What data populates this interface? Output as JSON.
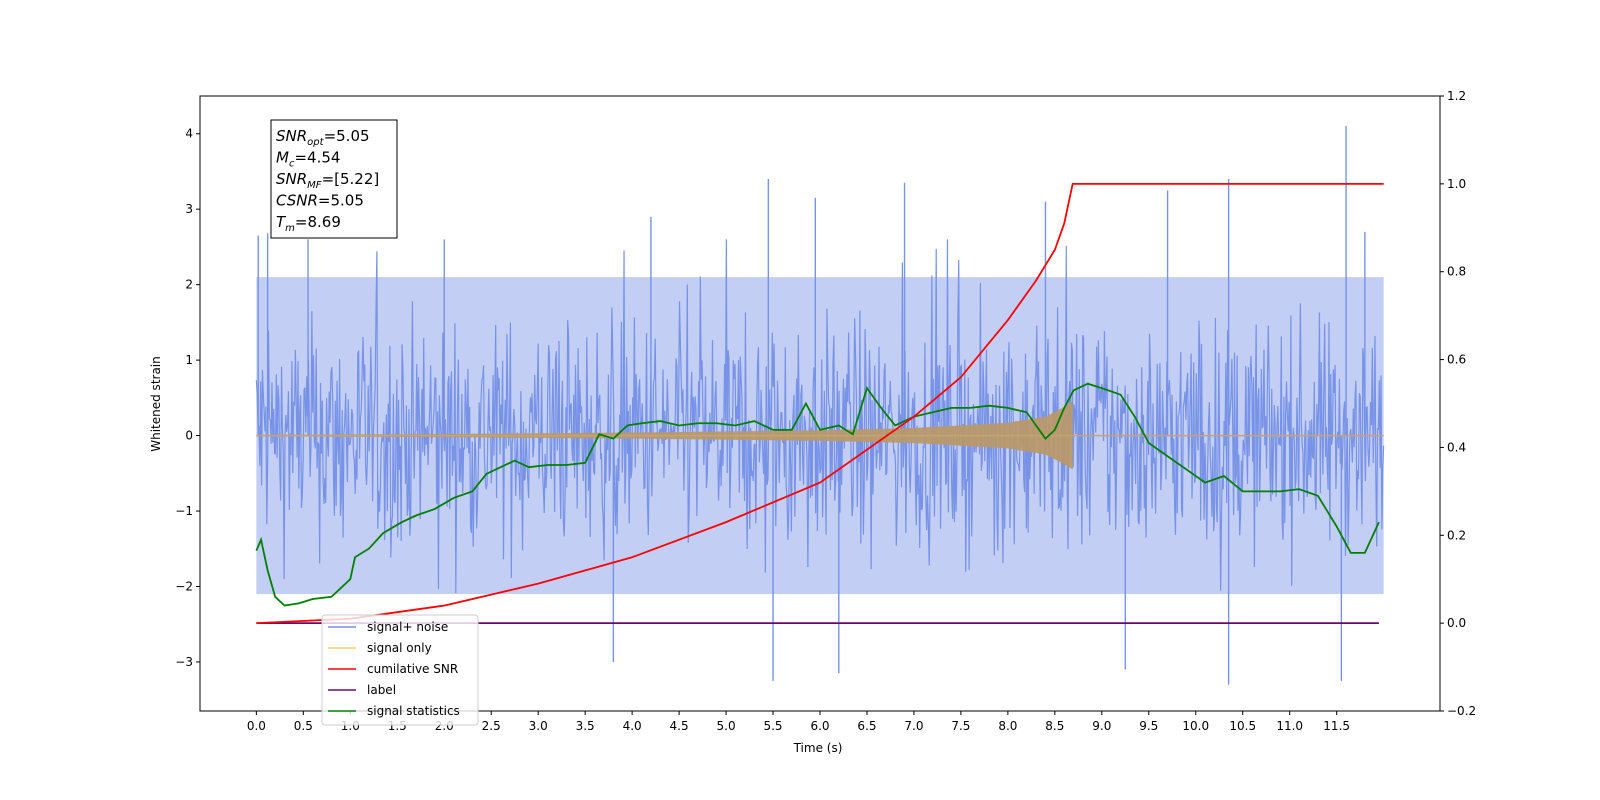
{
  "chart_data": {
    "type": "line",
    "title": "",
    "xlabel": "Time (s)",
    "ylabel": "Whitened strain",
    "xlim": [
      -0.6,
      12.6
    ],
    "ylim": [
      -3.65,
      4.5
    ],
    "y2lim": [
      -0.2,
      1.2
    ],
    "x_ticks": [
      0.0,
      0.5,
      1.0,
      1.5,
      2.0,
      2.5,
      3.0,
      3.5,
      4.0,
      4.5,
      5.0,
      5.5,
      6.0,
      6.5,
      7.0,
      7.5,
      8.0,
      8.5,
      9.0,
      9.5,
      10.0,
      10.5,
      11.0,
      11.5
    ],
    "x_tick_labels": [
      "0.0",
      "0.5",
      "1.0",
      "1.5",
      "2.0",
      "2.5",
      "3.0",
      "3.5",
      "4.0",
      "4.5",
      "5.0",
      "5.5",
      "6.0",
      "6.5",
      "7.0",
      "7.5",
      "8.0",
      "8.5",
      "9.0",
      "9.5",
      "10.0",
      "10.5",
      "11.0",
      "11.5"
    ],
    "y_ticks": [
      -3,
      -2,
      -1,
      0,
      1,
      2,
      3,
      4
    ],
    "y_tick_labels": [
      "−3",
      "−2",
      "−1",
      "0",
      "1",
      "2",
      "3",
      "4"
    ],
    "y2_ticks": [
      -0.2,
      0.0,
      0.2,
      0.4,
      0.6,
      0.8,
      1.0,
      1.2
    ],
    "y2_tick_labels": [
      "−0.2",
      "0.0",
      "0.2",
      "0.4",
      "0.6",
      "0.8",
      "1.0",
      "1.2"
    ],
    "grid": false,
    "legend_position": "lower-left",
    "info_box": {
      "lines": [
        {
          "sym": "SNR",
          "sub": "opt",
          "val": "=5.05"
        },
        {
          "sym": "M",
          "sub": "c",
          "val": "=4.54"
        },
        {
          "sym": "SNR",
          "sub": "MF",
          "val": "=[5.22]"
        },
        {
          "sym": "CSNR",
          "sub": "",
          "val": "=5.05"
        },
        {
          "sym": "T",
          "sub": "m",
          "val": "=8.69"
        }
      ]
    },
    "series": [
      {
        "name": "signal+ noise",
        "axis": "left",
        "color": "#7793e6",
        "x_start": 0.0,
        "x_end": 12.0,
        "noise_band": [
          -2.1,
          2.1
        ],
        "peaks": [
          [
            0.02,
            2.65
          ],
          [
            0.12,
            2.68
          ],
          [
            0.55,
            2.6
          ],
          [
            2.0,
            2.6
          ],
          [
            4.2,
            2.9
          ],
          [
            5.45,
            3.4
          ],
          [
            5.95,
            3.15
          ],
          [
            6.9,
            3.35
          ],
          [
            8.4,
            3.1
          ],
          [
            9.7,
            3.25
          ],
          [
            10.35,
            3.4
          ],
          [
            11.6,
            4.1
          ],
          [
            11.8,
            2.7
          ]
        ],
        "troughs": [
          [
            3.8,
            -3.0
          ],
          [
            5.5,
            -3.25
          ],
          [
            6.2,
            -3.15
          ],
          [
            9.25,
            -3.1
          ],
          [
            10.35,
            -3.3
          ],
          [
            11.55,
            -3.25
          ]
        ]
      },
      {
        "name": "signal only",
        "axis": "left",
        "color": "#ffb347",
        "envelope": [
          [
            0.0,
            0.01
          ],
          [
            2.0,
            0.02
          ],
          [
            4.0,
            0.04
          ],
          [
            6.0,
            0.07
          ],
          [
            7.0,
            0.1
          ],
          [
            8.0,
            0.17
          ],
          [
            8.4,
            0.25
          ],
          [
            8.6,
            0.38
          ],
          [
            8.69,
            0.45
          ]
        ],
        "x_end": 12.0
      },
      {
        "name": "cumilative SNR",
        "axis": "right",
        "color": "#ff0000",
        "x": [
          0.0,
          1.0,
          2.0,
          3.0,
          4.0,
          5.0,
          6.0,
          7.0,
          7.5,
          8.0,
          8.3,
          8.5,
          8.6,
          8.69,
          12.0
        ],
        "y": [
          0.0,
          0.01,
          0.04,
          0.09,
          0.15,
          0.23,
          0.32,
          0.47,
          0.56,
          0.69,
          0.78,
          0.85,
          0.91,
          1.0,
          1.0
        ]
      },
      {
        "name": "label",
        "axis": "right",
        "color": "#6a0a6a",
        "x": [
          0.0,
          11.95
        ],
        "y": [
          0.0,
          0.0
        ]
      },
      {
        "name": "signal statistics",
        "axis": "right",
        "color": "#008000",
        "x": [
          0.0,
          0.05,
          0.12,
          0.2,
          0.3,
          0.45,
          0.6,
          0.8,
          1.0,
          1.05,
          1.2,
          1.35,
          1.55,
          1.7,
          1.9,
          2.1,
          2.3,
          2.45,
          2.6,
          2.75,
          2.9,
          3.1,
          3.3,
          3.5,
          3.65,
          3.8,
          3.95,
          4.1,
          4.3,
          4.5,
          4.7,
          4.9,
          5.1,
          5.3,
          5.5,
          5.7,
          5.85,
          6.0,
          6.2,
          6.35,
          6.5,
          6.65,
          6.8,
          7.0,
          7.2,
          7.4,
          7.6,
          7.8,
          8.0,
          8.2,
          8.4,
          8.5,
          8.6,
          8.7,
          8.85,
          9.0,
          9.2,
          9.35,
          9.5,
          9.7,
          9.9,
          10.1,
          10.3,
          10.5,
          10.7,
          10.9,
          11.1,
          11.3,
          11.5,
          11.65,
          11.8,
          11.95
        ],
        "y": [
          0.165,
          0.19,
          0.12,
          0.06,
          0.04,
          0.045,
          0.055,
          0.06,
          0.1,
          0.15,
          0.17,
          0.205,
          0.23,
          0.245,
          0.26,
          0.285,
          0.3,
          0.34,
          0.355,
          0.37,
          0.355,
          0.36,
          0.36,
          0.365,
          0.43,
          0.42,
          0.45,
          0.455,
          0.46,
          0.45,
          0.455,
          0.455,
          0.45,
          0.46,
          0.44,
          0.44,
          0.5,
          0.44,
          0.45,
          0.43,
          0.535,
          0.49,
          0.45,
          0.47,
          0.48,
          0.49,
          0.49,
          0.495,
          0.49,
          0.48,
          0.42,
          0.44,
          0.49,
          0.53,
          0.545,
          0.535,
          0.52,
          0.47,
          0.41,
          0.38,
          0.35,
          0.32,
          0.335,
          0.3,
          0.3,
          0.3,
          0.305,
          0.29,
          0.22,
          0.16,
          0.16,
          0.23
        ]
      }
    ]
  }
}
